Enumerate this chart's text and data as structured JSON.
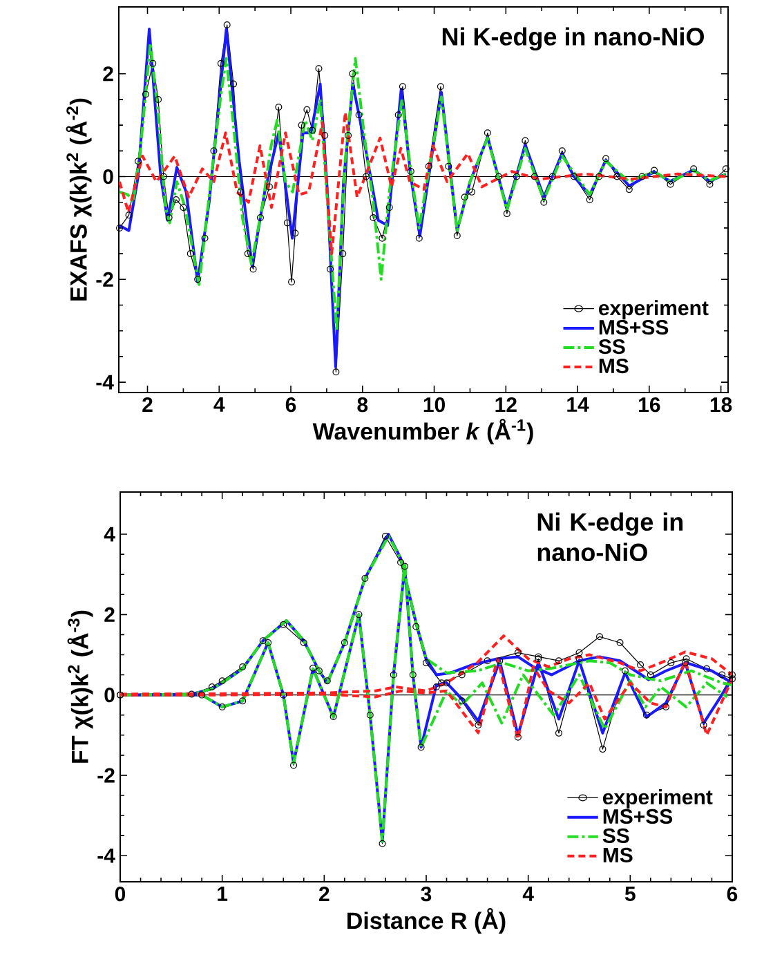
{
  "chart_data": [
    {
      "type": "line",
      "xlabel": "Wavenumber *k* (Å$^{-1}$)",
      "ylabel": "EXAFS χ(k)k$^{2}$ (Å$^{-2}$)",
      "annotations": [
        "Ni K-edge in nano-NiO"
      ],
      "xlim": [
        1.2,
        18.2
      ],
      "ylim": [
        -4.2,
        3.3
      ],
      "xticks": [
        2,
        4,
        6,
        8,
        10,
        12,
        14,
        16,
        18
      ],
      "yticks": [
        -4,
        -2,
        0,
        2
      ],
      "legend": "bottom right",
      "ref_lines": [
        {
          "axis": "y",
          "value": 0,
          "color": "#000000"
        }
      ],
      "series": [
        {
          "name": "experiment",
          "color": "#000000",
          "marker": "circle",
          "line_style": "solid",
          "x": [
            1.22,
            1.48,
            1.74,
            1.95,
            2.15,
            2.3,
            2.45,
            2.6,
            2.8,
            3.0,
            3.2,
            3.4,
            3.6,
            3.85,
            4.05,
            4.22,
            4.4,
            4.6,
            4.8,
            4.95,
            5.15,
            5.4,
            5.66,
            5.9,
            6.02,
            6.12,
            6.3,
            6.45,
            6.6,
            6.78,
            6.95,
            7.1,
            7.26,
            7.45,
            7.6,
            7.72,
            7.9,
            8.1,
            8.3,
            8.55,
            8.75,
            9.0,
            9.12,
            9.35,
            9.58,
            9.85,
            10.18,
            10.4,
            10.64,
            10.85,
            11.05,
            11.49,
            11.8,
            12.03,
            12.3,
            12.54,
            12.8,
            13.06,
            13.3,
            13.57,
            13.9,
            14.34,
            14.6,
            14.79,
            15.1,
            15.44,
            15.8,
            16.14,
            16.59,
            17.24,
            17.69,
            18.14
          ],
          "values": [
            -1.0,
            -0.75,
            0.3,
            1.6,
            2.2,
            1.5,
            0,
            -0.8,
            -0.45,
            -0.6,
            -1.5,
            -2.0,
            -1.2,
            0.5,
            2.2,
            2.95,
            1.8,
            -0.3,
            -1.5,
            -1.8,
            -0.8,
            -0.2,
            1.35,
            -0.9,
            -2.05,
            -1.1,
            1.0,
            1.3,
            0.9,
            2.1,
            0.8,
            -1.8,
            -3.8,
            -1.5,
            0.8,
            2.0,
            1.2,
            0.0,
            -0.8,
            -1.2,
            -0.6,
            1.2,
            1.75,
            0.1,
            -1.2,
            0.2,
            1.75,
            0.2,
            -1.15,
            -0.4,
            -0.3,
            0.85,
            0,
            -0.72,
            0,
            0.7,
            0,
            -0.5,
            0,
            0.5,
            0,
            -0.45,
            0,
            0.35,
            0,
            -0.25,
            0,
            0.12,
            -0.15,
            0.15,
            -0.15,
            0.15
          ]
        },
        {
          "name": "MS+SS",
          "color": "#1a1aff",
          "marker": "none",
          "line_style": "solid",
          "x": [
            1.22,
            1.48,
            1.74,
            2.05,
            2.37,
            2.56,
            2.82,
            3.08,
            3.4,
            3.72,
            4.2,
            4.56,
            4.92,
            5.27,
            5.66,
            6.04,
            6.34,
            6.56,
            6.82,
            7.02,
            7.25,
            7.47,
            7.73,
            8.05,
            8.44,
            8.7,
            9.08,
            9.34,
            9.6,
            10.2,
            10.64,
            11.0,
            11.49,
            12.03,
            12.54,
            13.06,
            13.57,
            13.9,
            14.34,
            14.79,
            15.44,
            16.14,
            16.59,
            17.24,
            17.69,
            18.14
          ],
          "values": [
            -0.95,
            -1.05,
            0,
            2.87,
            0,
            -0.85,
            0.18,
            -0.3,
            -2.05,
            -0.5,
            2.87,
            0.3,
            -1.75,
            -0.3,
            0.85,
            -1.2,
            0.85,
            0.85,
            1.8,
            -0.3,
            -3.7,
            -0.1,
            1.8,
            0.68,
            -0.85,
            -0.95,
            1.7,
            0.04,
            -1.15,
            1.64,
            -1.05,
            -0.1,
            0.76,
            -0.62,
            0.62,
            -0.4,
            0.45,
            0,
            -0.36,
            0.32,
            -0.18,
            0.09,
            -0.09,
            0.13,
            -0.09,
            0.05
          ]
        },
        {
          "name": "SS",
          "color": "#22dd22",
          "marker": "none",
          "line_style": "dashdot",
          "x": [
            1.22,
            1.45,
            1.6,
            1.8,
            2.08,
            2.3,
            2.5,
            2.62,
            2.82,
            3.05,
            3.44,
            3.75,
            4.05,
            4.2,
            4.4,
            4.65,
            4.9,
            5.2,
            5.45,
            5.62,
            5.85,
            6.05,
            6.4,
            6.6,
            6.82,
            7.0,
            7.28,
            7.5,
            7.8,
            8.05,
            8.3,
            8.52,
            8.75,
            9.1,
            9.35,
            9.58,
            10.2,
            10.64,
            11.0,
            11.49,
            12.03,
            12.54,
            13.06,
            13.57,
            14.34,
            14.79,
            15.44,
            16.14,
            16.59,
            17.24,
            17.69,
            18.14
          ],
          "values": [
            -0.3,
            -0.35,
            -0.5,
            0.5,
            2.6,
            1.2,
            -0.6,
            -0.9,
            -0.1,
            -0.6,
            -2.1,
            -0.2,
            1.6,
            2.3,
            1.0,
            -0.8,
            -1.7,
            -0.6,
            0.6,
            1.1,
            -0.1,
            -0.3,
            1.1,
            0.7,
            1.5,
            -0.3,
            -3.0,
            0.2,
            2.3,
            0.8,
            -0.5,
            -2.0,
            -0.3,
            1.5,
            0.1,
            -1.0,
            1.55,
            -1.05,
            -0.1,
            0.75,
            -0.65,
            0.55,
            -0.45,
            0.4,
            -0.35,
            0.3,
            -0.1,
            0.1,
            -0.1,
            0.12,
            -0.08,
            0.05
          ]
        },
        {
          "name": "MS",
          "color": "#ff2020",
          "marker": "none",
          "line_style": "dashed",
          "x": [
            1.22,
            1.47,
            1.86,
            2.25,
            2.76,
            3.15,
            3.53,
            3.85,
            4.18,
            4.5,
            4.82,
            5.14,
            5.46,
            5.85,
            6.23,
            6.5,
            6.88,
            7.14,
            7.52,
            7.85,
            8.49,
            8.81,
            9.07,
            9.32,
            9.71,
            9.97,
            10.36,
            10.94,
            11.33,
            12.17,
            12.94,
            14.23,
            15.5,
            16.8,
            18.14
          ],
          "values": [
            -0.1,
            -0.7,
            0.4,
            -0.1,
            0.4,
            -0.4,
            0.15,
            -0.1,
            0.85,
            -0.3,
            -0.5,
            0.6,
            -0.6,
            0.85,
            -0.35,
            -0.3,
            1.05,
            -1.5,
            1.25,
            -0.4,
            0.75,
            -0.2,
            0.55,
            -0.1,
            -0.25,
            0.6,
            -0.1,
            0.45,
            -0.2,
            0.1,
            -0.05,
            0.05,
            -0.05,
            0.05,
            0
          ]
        }
      ]
    },
    {
      "type": "line",
      "xlabel": "Distance R (Å)",
      "ylabel": "FT χ(k)k$^{2}$ (Å$^{-3}$)",
      "annotations": [
        "Ni K-edge in nano-NiO"
      ],
      "xlim": [
        0,
        6
      ],
      "ylim": [
        -4.65,
        5.05
      ],
      "xticks": [
        0,
        1,
        2,
        3,
        4,
        5,
        6
      ],
      "yticks": [
        -4,
        -2,
        0,
        2,
        4
      ],
      "legend": "bottom right",
      "ref_lines": [
        {
          "axis": "y",
          "value": 0,
          "color": "#000000"
        }
      ],
      "series": [
        {
          "name": "experiment",
          "color": "#000000",
          "marker": "circle",
          "line_style": "solid",
          "x": [
            0,
            0.7,
            0.9,
            1.0,
            1.2,
            1.4,
            1.6,
            1.8,
            1.95,
            2.03,
            2.2,
            2.4,
            2.6,
            2.75,
            2.9,
            3.0,
            3.15,
            3.35,
            3.6,
            3.9,
            4.1,
            4.3,
            4.5,
            4.7,
            4.9,
            5.1,
            5.2,
            5.4,
            5.55,
            5.75,
            5.9,
            6.0
          ],
          "values": [
            0,
            0.02,
            0.2,
            0.35,
            0.7,
            1.35,
            1.75,
            1.3,
            0.6,
            0.35,
            1.3,
            2.9,
            3.95,
            3.3,
            1.7,
            0.8,
            0.3,
            0.5,
            0.85,
            1.05,
            0.95,
            0.85,
            1.05,
            1.45,
            1.3,
            0.75,
            0.5,
            0.8,
            0.9,
            0.65,
            0.5,
            0.4
          ]
        },
        {
          "color": "#000000",
          "marker": "circle",
          "line_style": "solid",
          "x": [
            0,
            0.8,
            1.0,
            1.2,
            1.45,
            1.6,
            1.7,
            1.89,
            2.09,
            2.34,
            2.45,
            2.57,
            2.68,
            2.79,
            2.87,
            2.95,
            3.1,
            3.2,
            3.35,
            3.51,
            3.72,
            3.9,
            4.1,
            4.3,
            4.5,
            4.73,
            4.95,
            5.16,
            5.35,
            5.54,
            5.72,
            6.0
          ],
          "values": [
            0,
            0,
            -0.3,
            -0.15,
            1.3,
            0,
            -1.75,
            0.67,
            -0.54,
            2.0,
            -0.5,
            -3.7,
            0.5,
            3.2,
            0.5,
            -1.3,
            0.2,
            0.3,
            -0.15,
            -0.75,
            0.85,
            -1.05,
            0.9,
            -0.95,
            0.9,
            -1.35,
            0.6,
            -0.5,
            -0.3,
            0.8,
            -0.75,
            0.5
          ]
        },
        {
          "name": "MS+SS",
          "color": "#1a1aff",
          "marker": "none",
          "line_style": "solid",
          "x": [
            0,
            0.7,
            0.9,
            1.0,
            1.2,
            1.4,
            1.63,
            1.8,
            1.95,
            2.03,
            2.2,
            2.4,
            2.63,
            2.75,
            2.9,
            3.0,
            3.1,
            3.24,
            3.45,
            3.7,
            3.9,
            4.05,
            4.23,
            4.5,
            4.7,
            4.9,
            5.05,
            5.18,
            5.35,
            5.55,
            5.8,
            6.0
          ],
          "values": [
            0,
            0.02,
            0.15,
            0.3,
            0.65,
            1.35,
            1.85,
            1.35,
            0.6,
            0.3,
            1.3,
            2.9,
            4.0,
            3.4,
            1.8,
            0.9,
            0.5,
            0.55,
            0.75,
            0.9,
            0.95,
            0.7,
            0.5,
            0.85,
            0.95,
            0.85,
            0.6,
            0.38,
            0.6,
            0.8,
            0.6,
            0.3
          ]
        },
        {
          "color": "#1a1aff",
          "marker": "none",
          "line_style": "solid",
          "x": [
            0,
            0.8,
            1.0,
            1.2,
            1.45,
            1.6,
            1.7,
            1.89,
            2.09,
            2.34,
            2.45,
            2.57,
            2.68,
            2.79,
            2.87,
            2.95,
            3.1,
            3.2,
            3.35,
            3.51,
            3.72,
            3.9,
            4.1,
            4.3,
            4.5,
            4.73,
            4.95,
            5.16,
            5.35,
            5.54,
            5.72,
            6.0
          ],
          "values": [
            0,
            0,
            -0.3,
            -0.15,
            1.3,
            0,
            -1.7,
            0.65,
            -0.55,
            2.0,
            -0.5,
            -3.65,
            0.5,
            3.2,
            0.5,
            -1.3,
            0.25,
            0.3,
            -0.1,
            -0.65,
            0.85,
            -1.0,
            0.8,
            -0.6,
            0.85,
            -0.95,
            0.55,
            -0.55,
            -0.2,
            0.8,
            -0.7,
            0.4
          ]
        },
        {
          "name": "SS",
          "color": "#22dd22",
          "marker": "none",
          "line_style": "dashdot",
          "x": [
            0,
            0.7,
            0.9,
            1.0,
            1.2,
            1.4,
            1.63,
            1.8,
            1.95,
            2.03,
            2.2,
            2.4,
            2.63,
            2.75,
            2.9,
            3.0,
            3.2,
            3.5,
            3.75,
            4.0,
            4.2,
            4.6,
            4.8,
            5.0,
            5.3,
            5.6,
            5.9,
            6.0
          ],
          "values": [
            0,
            0.02,
            0.15,
            0.3,
            0.65,
            1.35,
            1.85,
            1.35,
            0.6,
            0.3,
            1.3,
            2.9,
            3.95,
            3.4,
            1.8,
            0.9,
            0.55,
            0.6,
            0.8,
            0.6,
            0.65,
            0.85,
            0.8,
            0.5,
            0.35,
            0.6,
            0.3,
            0.25
          ]
        },
        {
          "color": "#22dd22",
          "marker": "none",
          "line_style": "dashdot",
          "x": [
            0,
            0.8,
            1.0,
            1.2,
            1.45,
            1.6,
            1.7,
            1.89,
            2.09,
            2.34,
            2.45,
            2.57,
            2.68,
            2.79,
            2.87,
            2.95,
            3.2,
            3.35,
            3.55,
            3.74,
            3.95,
            4.25,
            4.5,
            4.75,
            5.0,
            5.15,
            5.3,
            5.55,
            5.75,
            5.95
          ],
          "values": [
            0,
            0,
            -0.3,
            -0.15,
            1.3,
            0,
            -1.7,
            0.65,
            -0.55,
            2.0,
            -0.5,
            -3.65,
            0.5,
            3.3,
            0.5,
            -1.3,
            0.1,
            -0.25,
            0.3,
            -0.7,
            0.5,
            -0.5,
            0.5,
            -0.85,
            0.35,
            -0.3,
            0.2,
            -0.3,
            0.3,
            -0.05
          ]
        },
        {
          "name": "MS",
          "color": "#ff2020",
          "marker": "none",
          "line_style": "dashed",
          "x": [
            0,
            1.0,
            2.0,
            2.5,
            2.7,
            3.0,
            3.2,
            3.5,
            3.76,
            4.0,
            4.2,
            4.4,
            4.6,
            4.9,
            5.1,
            5.3,
            5.54,
            5.8,
            6.0
          ],
          "values": [
            0.02,
            0.03,
            0.05,
            0.1,
            0.2,
            0.1,
            0.3,
            0.8,
            1.47,
            0.9,
            0.7,
            0.9,
            1.0,
            0.8,
            0.6,
            0.8,
            1.07,
            0.9,
            0.5
          ]
        },
        {
          "color": "#ff2020",
          "marker": "none",
          "line_style": "dashed",
          "x": [
            0,
            1.0,
            2.0,
            2.5,
            2.75,
            3.0,
            3.2,
            3.51,
            3.7,
            3.9,
            4.05,
            4.2,
            4.4,
            4.6,
            4.75,
            5.0,
            5.2,
            5.35,
            5.54,
            5.75,
            6.0
          ],
          "values": [
            0,
            0,
            0.02,
            -0.05,
            0.1,
            0.05,
            0.1,
            -0.94,
            0.9,
            -1.1,
            0.7,
            0.1,
            -0.2,
            0.3,
            -0.6,
            0.3,
            -0.2,
            -0.3,
            0.85,
            -1.0,
            0.4
          ]
        }
      ]
    }
  ]
}
